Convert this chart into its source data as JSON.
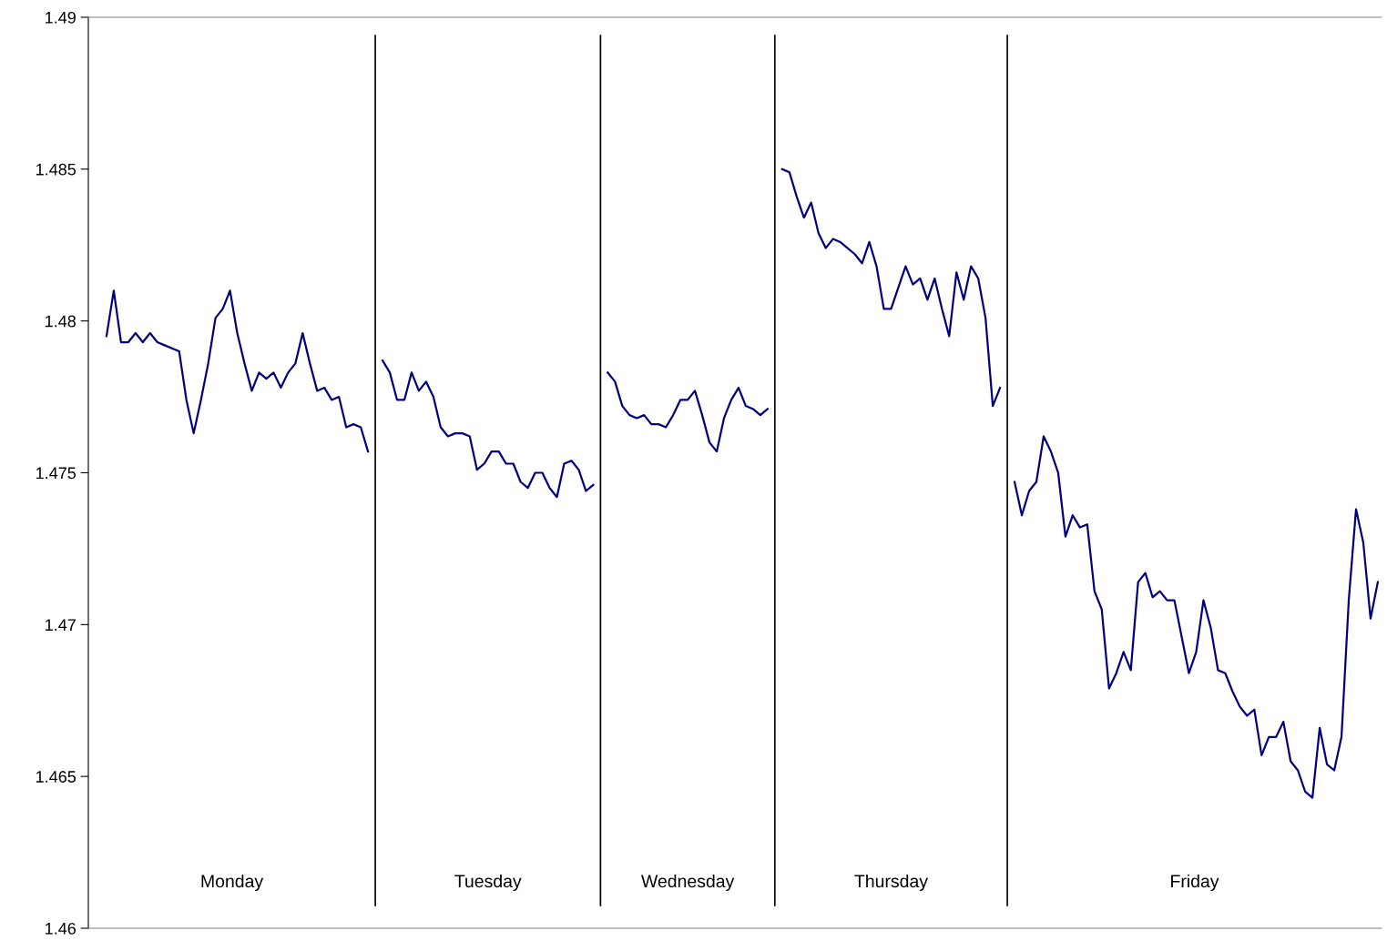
{
  "chart_data": {
    "type": "line",
    "categories": [
      null,
      null,
      null,
      null,
      null,
      null,
      null,
      null,
      null,
      null,
      null,
      null,
      null,
      null,
      null,
      null,
      null,
      null,
      null,
      null,
      null,
      null,
      null,
      null,
      null,
      null,
      null,
      null,
      null,
      null,
      null,
      null,
      null,
      null,
      null,
      null,
      null,
      null,
      null,
      null,
      null,
      null,
      null,
      null,
      null,
      null,
      null,
      null,
      null,
      null,
      null,
      null,
      null,
      null,
      null,
      null,
      null,
      null,
      null,
      null,
      null,
      null,
      null,
      null,
      null,
      null,
      null,
      null,
      null,
      null,
      null,
      null,
      null,
      null,
      null,
      null,
      null,
      null,
      null,
      null,
      null,
      null,
      null,
      null,
      null,
      null,
      null,
      null,
      null,
      null,
      null,
      null,
      null,
      null,
      null,
      null,
      null,
      null,
      null,
      null,
      null,
      null,
      null,
      null,
      null,
      null,
      null,
      null,
      null,
      null,
      null,
      null,
      null,
      null,
      null,
      null,
      null,
      null,
      null,
      null,
      null,
      null,
      null,
      null,
      null,
      null,
      null,
      null,
      null,
      null,
      null,
      null,
      null,
      null,
      null,
      null,
      null,
      null,
      null,
      null,
      null,
      null,
      null,
      null,
      null,
      null,
      null,
      null,
      null,
      null,
      null,
      null,
      null,
      null,
      null,
      null,
      null,
      null,
      null,
      null,
      null,
      null,
      null,
      null,
      null,
      null,
      null,
      null,
      null,
      null,
      null,
      null,
      null,
      null,
      null,
      null,
      null,
      null
    ],
    "series": [
      {
        "color": "#000080",
        "values": [
          null,
          null,
          1.4795,
          1.481,
          1.4793,
          1.4793,
          1.4796,
          1.4793,
          1.4796,
          1.4793,
          1.4792,
          1.4791,
          1.479,
          1.4774,
          1.4763,
          1.4774,
          1.4786,
          1.4801,
          1.4804,
          1.481,
          1.4796,
          1.4786,
          1.4777,
          1.4783,
          1.4781,
          1.4783,
          1.4778,
          1.4783,
          1.4786,
          1.4796,
          1.4786,
          1.4777,
          1.4778,
          1.4774,
          1.4775,
          1.4765,
          1.4766,
          1.4765,
          1.4757,
          null,
          1.4787,
          1.4783,
          1.4774,
          1.4774,
          1.4783,
          1.4777,
          1.478,
          1.4775,
          1.4765,
          1.4762,
          1.4763,
          1.4763,
          1.4762,
          1.4751,
          1.4753,
          1.4757,
          1.4757,
          1.4753,
          1.4753,
          1.4747,
          1.4745,
          1.475,
          1.475,
          1.4745,
          1.4742,
          1.4753,
          1.4754,
          1.4751,
          1.4744,
          1.4746,
          null,
          1.4783,
          1.478,
          1.4772,
          1.4769,
          1.4768,
          1.4769,
          1.4766,
          1.4766,
          1.4765,
          1.4769,
          1.4774,
          1.4774,
          1.4777,
          1.4769,
          1.476,
          1.4757,
          1.4768,
          1.4774,
          1.4778,
          1.4772,
          1.4771,
          1.4769,
          1.4771,
          null,
          1.485,
          1.4849,
          1.4841,
          1.4834,
          1.4839,
          1.4829,
          1.4824,
          1.4827,
          1.4826,
          1.4824,
          1.4822,
          1.4819,
          1.4826,
          1.4818,
          1.4804,
          1.4804,
          1.4811,
          1.4818,
          1.4812,
          1.4814,
          1.4807,
          1.4814,
          1.4804,
          1.4795,
          1.4816,
          1.4807,
          1.4818,
          1.4814,
          1.4801,
          1.4772,
          1.4778,
          null,
          1.4747,
          1.4736,
          1.4744,
          1.4747,
          1.4762,
          1.4757,
          1.475,
          1.4729,
          1.4736,
          1.4732,
          1.4733,
          1.4711,
          1.4705,
          1.4679,
          1.4684,
          1.4691,
          1.4685,
          1.4714,
          1.4717,
          1.4709,
          1.4711,
          1.4708,
          1.4708,
          1.4696,
          1.4684,
          1.4691,
          1.4708,
          1.4699,
          1.4685,
          1.4684,
          1.4678,
          1.4673,
          1.467,
          1.4672,
          1.4657,
          1.4663,
          1.4663,
          1.4668,
          1.4655,
          1.4652,
          1.4645,
          1.4643,
          1.4666,
          1.4654,
          1.4652,
          1.4663,
          1.4708,
          1.4738,
          1.4727,
          1.4702,
          1.4714
        ]
      }
    ],
    "ylim": [
      1.46,
      1.49
    ],
    "yticks": [
      1.46,
      1.465,
      1.47,
      1.475,
      1.48,
      1.485,
      1.49
    ],
    "tick_labels": "y",
    "grid": false,
    "marker": "none",
    "line_style": "solid",
    "annotations": [
      "Monday",
      "Tuesday",
      "Wednesday",
      "Thursday",
      "Friday"
    ]
  }
}
